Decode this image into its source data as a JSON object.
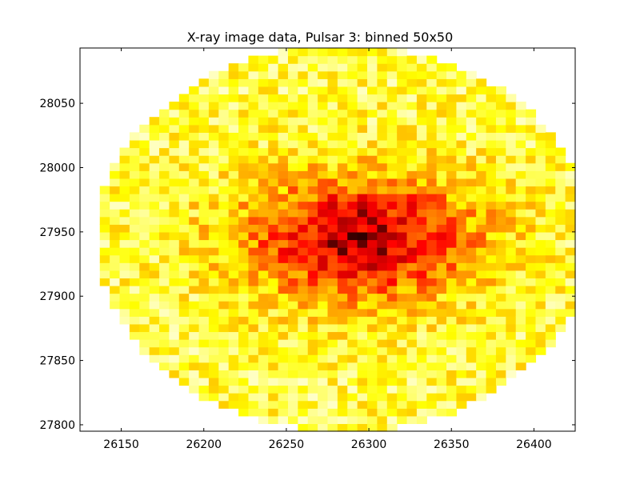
{
  "chart_data": {
    "type": "heatmap",
    "title": "X-ray image data, Pulsar 3: binned 50x50",
    "xlabel": "",
    "ylabel": "",
    "xlim": [
      26125,
      26425
    ],
    "ylim": [
      27795,
      28093
    ],
    "xticks": [
      26150,
      26200,
      26250,
      26300,
      26350,
      26400
    ],
    "yticks": [
      27800,
      27850,
      27900,
      27950,
      28000,
      28050
    ],
    "grid": false,
    "colormap": [
      "#ffffff",
      "#ffff80",
      "#ffff00",
      "#ffb000",
      "#ff6000",
      "#ff0000",
      "#b00000",
      "#000000"
    ],
    "bins": [
      50,
      50
    ],
    "center": [
      26285,
      27945
    ],
    "radius": [
      150,
      150
    ],
    "peak_center": [
      26295,
      27945
    ],
    "peak_radius": [
      75,
      50
    ]
  }
}
